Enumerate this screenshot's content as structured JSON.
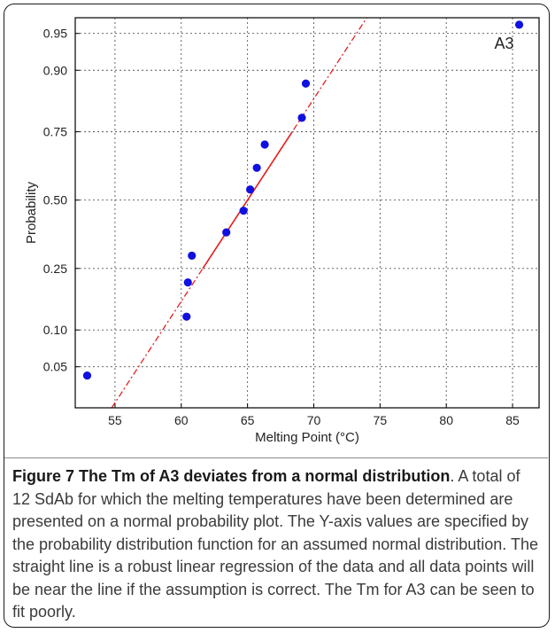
{
  "chart_data": {
    "type": "scatter",
    "plot_kind": "normal probability plot",
    "xlabel": "Melting Point (°C)",
    "ylabel": "Probability",
    "xlim": [
      52,
      87
    ],
    "x_ticks": [
      55,
      60,
      65,
      70,
      75,
      80,
      85
    ],
    "y_ticks": [
      {
        "label": "0.05",
        "p": 0.05
      },
      {
        "label": "0.10",
        "p": 0.1
      },
      {
        "label": "0.25",
        "p": 0.25
      },
      {
        "label": "0.50",
        "p": 0.5
      },
      {
        "label": "0.75",
        "p": 0.75
      },
      {
        "label": "0.90",
        "p": 0.9
      },
      {
        "label": "0.95",
        "p": 0.95
      }
    ],
    "grid": true,
    "points": [
      {
        "x": 52.9,
        "p": 0.0417
      },
      {
        "x": 60.4,
        "p": 0.125
      },
      {
        "x": 60.5,
        "p": 0.2083
      },
      {
        "x": 60.8,
        "p": 0.2917
      },
      {
        "x": 63.4,
        "p": 0.375
      },
      {
        "x": 64.7,
        "p": 0.4583
      },
      {
        "x": 65.2,
        "p": 0.5417
      },
      {
        "x": 65.7,
        "p": 0.625
      },
      {
        "x": 66.3,
        "p": 0.7083
      },
      {
        "x": 69.1,
        "p": 0.7917
      },
      {
        "x": 69.4,
        "p": 0.875
      },
      {
        "x": 85.5,
        "p": 0.9583
      }
    ],
    "fit_line": {
      "style": "dash-dot",
      "color": "#e02020",
      "x_at_p50": 65.0,
      "x_per_z": 5.0
    },
    "point_color": "#1010e0",
    "annotations": [
      {
        "text": "A3",
        "near_x": 85.5,
        "near_p": 0.9583
      }
    ]
  },
  "caption": {
    "title": "Figure 7 The Tm of A3 deviates from a normal distribution",
    "body": ". A total of 12 SdAb for which the melting temperatures have been determined are presented on a normal probability plot. The Y-axis values are specified by the probability distribution function for an assumed normal distribution. The straight line is a robust linear regression of the data and all data points will be near the line if the assumption is correct. The Tm for A3 can be seen to fit poorly."
  }
}
